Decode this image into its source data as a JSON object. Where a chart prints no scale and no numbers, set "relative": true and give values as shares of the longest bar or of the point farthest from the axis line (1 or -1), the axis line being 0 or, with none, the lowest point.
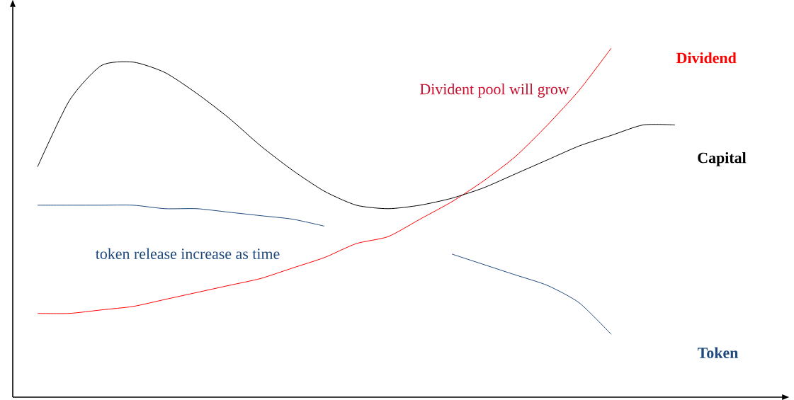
{
  "chart_data": {
    "type": "line",
    "relative": true,
    "categories": [
      null,
      null,
      null,
      null,
      null,
      null,
      null,
      null,
      null,
      null,
      null,
      null,
      null,
      null,
      null,
      null,
      null,
      null,
      null,
      null,
      null
    ],
    "series": [
      {
        "name": "Dividend",
        "color": "#ff0000",
        "values": [
          0.24,
          0.24,
          0.25,
          0.26,
          0.28,
          0.3,
          0.32,
          0.34,
          0.37,
          0.4,
          0.44,
          0.46,
          0.51,
          0.56,
          0.62,
          0.69,
          0.78,
          0.88,
          1,
          null,
          null
        ]
      },
      {
        "name": "Capital",
        "color": "#000000",
        "values": [
          0.66,
          0.85,
          0.95,
          0.96,
          0.93,
          0.87,
          0.8,
          0.72,
          0.65,
          0.59,
          0.55,
          0.54,
          0.55,
          0.57,
          0.6,
          0.64,
          0.68,
          0.72,
          0.75,
          0.78,
          0.78
        ]
      },
      {
        "name": "Token",
        "color": "#1f497d",
        "values": [
          0.55,
          0.55,
          0.55,
          0.55,
          0.54,
          0.54,
          0.53,
          0.52,
          0.51,
          0.49,
          null,
          null,
          null,
          0.41,
          0.38,
          0.35,
          0.32,
          0.27,
          0.18,
          null,
          null
        ]
      }
    ],
    "annotations": [
      "Divident pool will grow",
      "token release increase as time"
    ]
  }
}
